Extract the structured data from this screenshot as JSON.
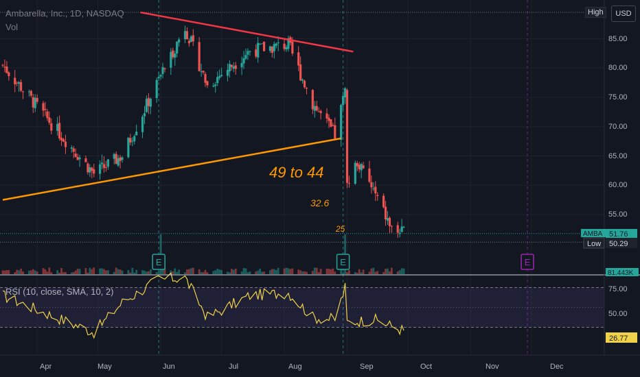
{
  "header": {
    "symbol_title": "Ambarella, Inc., 1D, NASDAQ",
    "volume_label": "Vol",
    "currency_button": "USD",
    "high_label": "High"
  },
  "price_axis": {
    "ticks": [
      "85.00",
      "80.00",
      "75.00",
      "70.00",
      "65.00",
      "60.00",
      "55.00"
    ],
    "last_price_tag": "AMBA",
    "last_price_value": "51.76",
    "low_label": "Low",
    "low_value": "50.29",
    "volume_value": "81.443K"
  },
  "rsi_panel": {
    "title": "RSI (10, close, SMA, 10, 2)",
    "ticks": [
      "75.00",
      "50.00"
    ],
    "current_value": "26.77"
  },
  "time_axis": {
    "labels": [
      "Apr",
      "May",
      "Jun",
      "Jul",
      "Aug",
      "Sep",
      "Oct",
      "Nov",
      "Dec"
    ]
  },
  "annotations": {
    "main_target": "49 to 44",
    "target_2": "32.6",
    "target_3": "25",
    "earnings_marker": "E"
  },
  "colors": {
    "background": "#131722",
    "up": "#26a69a",
    "down": "#ef5350",
    "resistance_line": "#f23645",
    "support_line": "#ff9800",
    "annotation_text": "#ff9800",
    "rsi_line": "#f0d24a",
    "future_earnings": "#9c27b0"
  },
  "chart_data": {
    "type": "candlestick",
    "title": "Ambarella, Inc., 1D, NASDAQ",
    "y_range": [
      48,
      89
    ],
    "key_points": [
      {
        "date": "2022-03-15",
        "close": 80.5
      },
      {
        "date": "2022-04-08",
        "close": 70.5
      },
      {
        "date": "2022-04-29",
        "close": 62.0
      },
      {
        "date": "2022-05-13",
        "close": 65.0
      },
      {
        "date": "2022-05-31",
        "close": 78.0
      },
      {
        "date": "2022-06-13",
        "close": 87.0
      },
      {
        "date": "2022-06-24",
        "close": 77.0
      },
      {
        "date": "2022-07-15",
        "close": 83.0
      },
      {
        "date": "2022-08-03",
        "close": 84.0
      },
      {
        "date": "2022-08-15",
        "close": 74.0
      },
      {
        "date": "2022-08-26",
        "close": 68.5
      },
      {
        "date": "2022-08-31",
        "close": 76.0
      },
      {
        "date": "2022-09-01",
        "close": 60.0
      },
      {
        "date": "2022-09-06",
        "close": 64.0
      },
      {
        "date": "2022-09-14",
        "close": 59.0
      },
      {
        "date": "2022-09-23",
        "close": 52.5
      },
      {
        "date": "2022-09-29",
        "close": 51.76
      }
    ],
    "last_close": 51.76,
    "low": 50.29,
    "volume_last": "81.443K",
    "trendlines": [
      {
        "name": "resistance",
        "from": {
          "date": "2022-05-22",
          "price": 89.5
        },
        "to": {
          "date": "2022-09-04",
          "price": 82.8
        }
      },
      {
        "name": "support",
        "from": {
          "date": "2022-03-15",
          "price": 57.5
        },
        "to": {
          "date": "2022-08-29",
          "price": 68.0
        }
      }
    ],
    "earnings_dates": [
      "2022-05-31",
      "2022-08-30",
      "2022-11-29"
    ],
    "rsi": {
      "params": "10, close, SMA, 10, 2",
      "ylim": [
        0,
        100
      ],
      "levels": [
        70,
        30
      ],
      "key_points": [
        {
          "date": "2022-03-15",
          "value": 62
        },
        {
          "date": "2022-04-08",
          "value": 42
        },
        {
          "date": "2022-04-29",
          "value": 25
        },
        {
          "date": "2022-05-13",
          "value": 55
        },
        {
          "date": "2022-05-31",
          "value": 78
        },
        {
          "date": "2022-06-13",
          "value": 80
        },
        {
          "date": "2022-06-24",
          "value": 40
        },
        {
          "date": "2022-07-15",
          "value": 62
        },
        {
          "date": "2022-08-03",
          "value": 65
        },
        {
          "date": "2022-08-15",
          "value": 40
        },
        {
          "date": "2022-08-26",
          "value": 38
        },
        {
          "date": "2022-08-31",
          "value": 70
        },
        {
          "date": "2022-09-01",
          "value": 35
        },
        {
          "date": "2022-09-14",
          "value": 38
        },
        {
          "date": "2022-09-29",
          "value": 26.77
        }
      ],
      "current": 26.77
    }
  }
}
